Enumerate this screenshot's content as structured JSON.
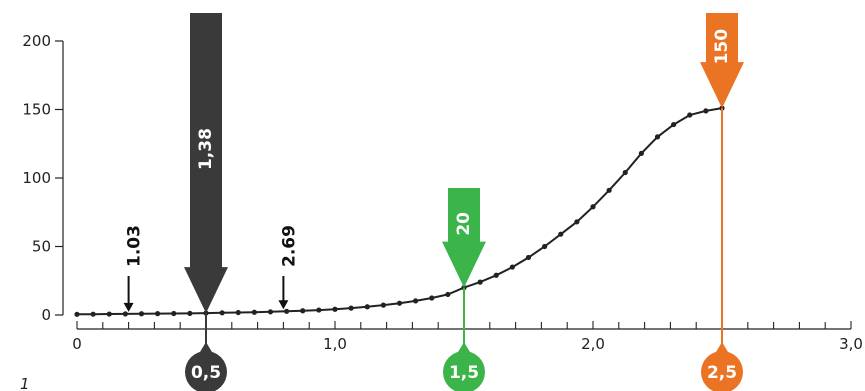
{
  "chart_data": {
    "type": "line",
    "x": [
      0.0,
      0.0625,
      0.125,
      0.1875,
      0.25,
      0.3125,
      0.375,
      0.4375,
      0.5,
      0.5625,
      0.625,
      0.6875,
      0.75,
      0.8125,
      0.875,
      0.9375,
      1.0,
      1.0625,
      1.125,
      1.1875,
      1.25,
      1.3125,
      1.375,
      1.4375,
      1.5,
      1.5625,
      1.625,
      1.6875,
      1.75,
      1.8125,
      1.875,
      1.9375,
      2.0,
      2.0625,
      2.125,
      2.1875,
      2.25,
      2.3125,
      2.375,
      2.4375,
      2.5
    ],
    "y": [
      0.5,
      0.6,
      0.7,
      0.8,
      0.9,
      1.0,
      1.1,
      1.2,
      1.4,
      1.6,
      1.8,
      2.0,
      2.3,
      2.7,
      3.1,
      3.6,
      4.2,
      5.0,
      6.0,
      7.2,
      8.6,
      10.3,
      12.4,
      15.0,
      20.0,
      24.0,
      29.0,
      35.0,
      42.0,
      50.0,
      59.0,
      68.0,
      79.0,
      91.0,
      104.0,
      118.0,
      130.0,
      139.0,
      146.0,
      149.0,
      151.0
    ],
    "xlim": [
      0,
      3.0
    ],
    "ylim": [
      0,
      200
    ],
    "x_ticks": [
      "0",
      "1,0",
      "2,0",
      "3,0"
    ],
    "y_ticks": [
      "0",
      "50",
      "100",
      "150",
      "200"
    ],
    "callouts": [
      {
        "x": 0.5,
        "label": "0,5",
        "value_label": "1,38",
        "color": "#3a3a3a"
      },
      {
        "x": 1.5,
        "label": "1,5",
        "value_label": "20",
        "color": "#3bb54a"
      },
      {
        "x": 2.5,
        "label": "2,5",
        "value_label": "150",
        "color": "#ea7324"
      }
    ],
    "small_arrows": [
      {
        "x": 0.2,
        "label": "1.03"
      },
      {
        "x": 0.8,
        "label": "2.69"
      }
    ]
  },
  "corner_text": "1"
}
